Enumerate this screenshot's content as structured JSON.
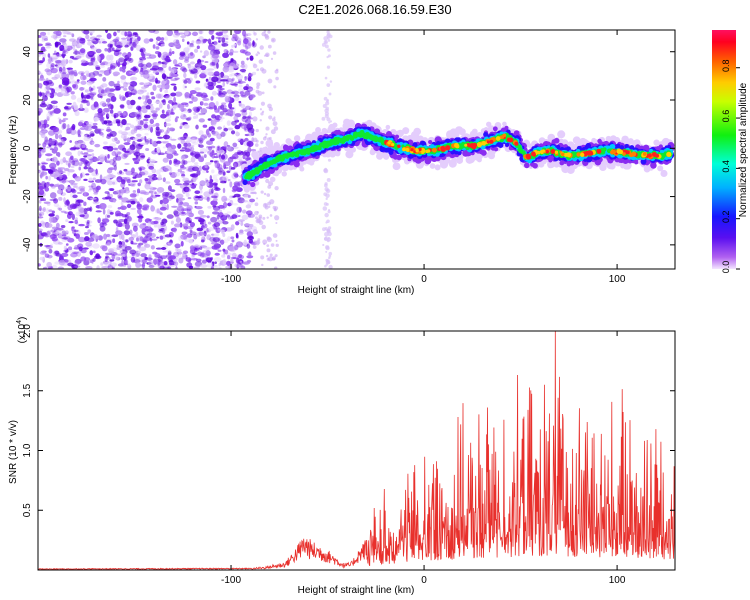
{
  "title": "C2E1.2026.068.16.59.E30",
  "chart_data": [
    {
      "type": "heatmap",
      "xlabel": "Height of straight line (km)",
      "ylabel": "Frequency (Hz)",
      "xlim": [
        -200,
        130
      ],
      "ylim": [
        -50,
        49
      ],
      "xticks": [
        -100,
        0,
        100
      ],
      "yticks": [
        -40,
        -20,
        0,
        20,
        40
      ],
      "xtick_labels": [
        "-100",
        "0",
        "100"
      ],
      "ytick_labels": [
        "-40",
        "-20",
        "0",
        "20",
        "40"
      ],
      "ridge": {
        "x": [
          -93,
          -88,
          -80,
          -70,
          -60,
          -50,
          -40,
          -32,
          -25,
          -15,
          -5,
          5,
          15,
          25,
          35,
          42,
          48,
          53,
          58,
          65,
          75,
          85,
          95,
          105,
          115,
          122,
          128
        ],
        "y": [
          -12,
          -10,
          -6,
          -3,
          -1,
          2,
          4,
          6,
          4,
          1,
          -1,
          -1,
          1,
          1,
          3,
          5,
          2,
          -4,
          -2,
          -1,
          -3,
          -2,
          -1,
          -2,
          -3,
          -3,
          -2
        ]
      },
      "noise_region": {
        "x_start": -200,
        "x_end": -88
      },
      "colorbar": {
        "label": "Normalized spectral amplitude",
        "range": [
          0,
          0.95
        ],
        "ticks": [
          0.0,
          0.2,
          0.4,
          0.6,
          0.8
        ],
        "tick_labels": [
          "0.0",
          "0.2",
          "0.4",
          "0.6",
          "0.8"
        ]
      }
    },
    {
      "type": "line",
      "xlabel": "Height of straight line (km)",
      "ylabel": "SNR (10 * v/v)",
      "scale_label": "(x10",
      "scale_exponent": "4",
      "scale_close": ")",
      "xlim": [
        -200,
        130
      ],
      "ylim": [
        0,
        20000
      ],
      "xticks": [
        -100,
        0,
        100
      ],
      "xtick_labels": [
        "-100",
        "0",
        "100"
      ],
      "yticks": [
        5000,
        10000,
        15000,
        20000
      ],
      "ytick_labels": [
        "0.5",
        "1.0",
        "1.5",
        "2.0"
      ],
      "color": "#e8302c",
      "envelope": {
        "x": [
          -200,
          -90,
          -82,
          -72,
          -66,
          -62,
          -58,
          -54,
          -50,
          -46,
          -42,
          -38,
          -34,
          -30,
          -25,
          -20,
          -15,
          -10,
          -5,
          0,
          10,
          20,
          30,
          40,
          50,
          60,
          70,
          80,
          90,
          100,
          110,
          120,
          125,
          130
        ],
        "y": [
          80,
          120,
          220,
          500,
          1500,
          2300,
          1800,
          1600,
          1300,
          900,
          450,
          450,
          1300,
          2000,
          2600,
          3200,
          3500,
          4000,
          4600,
          5000,
          5500,
          6000,
          6400,
          6800,
          7200,
          7500,
          7800,
          7200,
          7000,
          6800,
          6500,
          6300,
          6000,
          5500
        ]
      },
      "peak": {
        "x": 68,
        "y": 20000
      }
    }
  ]
}
